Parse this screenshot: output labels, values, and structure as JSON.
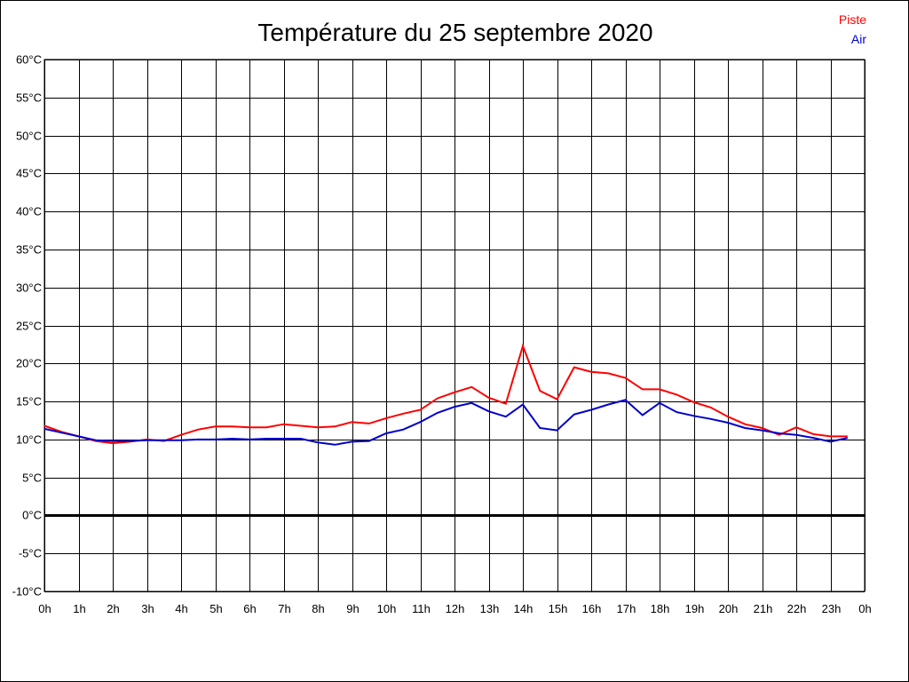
{
  "chart_data": {
    "type": "line",
    "title": "Température du 25 septembre 2020",
    "xlabel": "",
    "ylabel": "",
    "ylim": [
      -10,
      60
    ],
    "y_step": 5,
    "y_tick_labels": [
      "-10°C",
      "-5°C",
      "0°C",
      "5°C",
      "10°C",
      "15°C",
      "20°C",
      "25°C",
      "30°C",
      "35°C",
      "40°C",
      "45°C",
      "50°C",
      "55°C",
      "60°C"
    ],
    "x_tick_labels": [
      "0h",
      "1h",
      "2h",
      "3h",
      "4h",
      "5h",
      "6h",
      "7h",
      "8h",
      "9h",
      "10h",
      "11h",
      "12h",
      "13h",
      "14h",
      "15h",
      "16h",
      "17h",
      "18h",
      "19h",
      "20h",
      "21h",
      "22h",
      "23h",
      "0h"
    ],
    "x_range_hours": [
      0,
      24
    ],
    "grid": true,
    "zero_line": true,
    "legend_position": "top-right",
    "series": [
      {
        "name": "Piste",
        "color": "#ff0000",
        "x": [
          0,
          0.5,
          1,
          1.5,
          2,
          2.5,
          3,
          3.5,
          4,
          4.5,
          5,
          5.5,
          6,
          6.5,
          7,
          7.5,
          8,
          8.5,
          9,
          9.5,
          10,
          10.5,
          11,
          11.5,
          12,
          12.5,
          13,
          13.5,
          14,
          14.5,
          15,
          15.5,
          16,
          16.5,
          17,
          17.5,
          18,
          18.5,
          19,
          19.5,
          20,
          20.5,
          21,
          21.5,
          22,
          22.5,
          23,
          23.5
        ],
        "values": [
          11.8,
          11.0,
          10.4,
          9.8,
          9.5,
          9.7,
          10.0,
          9.8,
          10.6,
          11.3,
          11.7,
          11.7,
          11.6,
          11.6,
          12.0,
          11.8,
          11.6,
          11.7,
          12.3,
          12.1,
          12.8,
          13.4,
          13.9,
          15.4,
          16.2,
          16.9,
          15.5,
          14.7,
          22.3,
          16.4,
          15.3,
          19.5,
          18.9,
          18.7,
          18.1,
          16.6,
          16.6,
          15.9,
          14.9,
          14.2,
          13.0,
          12.0,
          11.5,
          10.6,
          11.6,
          10.7,
          10.4,
          10.4
        ]
      },
      {
        "name": "Air",
        "color": "#0000cc",
        "x": [
          0,
          0.5,
          1,
          1.5,
          2,
          2.5,
          3,
          3.5,
          4,
          4.5,
          5,
          5.5,
          6,
          6.5,
          7,
          7.5,
          8,
          8.5,
          9,
          9.5,
          10,
          10.5,
          11,
          11.5,
          12,
          12.5,
          13,
          13.5,
          14,
          14.5,
          15,
          15.5,
          16,
          16.5,
          17,
          17.5,
          18,
          18.5,
          19,
          19.5,
          20,
          20.5,
          21,
          21.5,
          22,
          22.5,
          23,
          23.5
        ],
        "values": [
          11.4,
          10.9,
          10.4,
          9.9,
          9.8,
          9.8,
          9.9,
          9.9,
          9.9,
          10.0,
          10.0,
          10.1,
          10.0,
          10.1,
          10.1,
          10.1,
          9.6,
          9.3,
          9.7,
          9.8,
          10.8,
          11.3,
          12.3,
          13.5,
          14.3,
          14.8,
          13.7,
          13.0,
          14.6,
          11.5,
          11.2,
          13.3,
          13.9,
          14.6,
          15.2,
          13.2,
          14.8,
          13.6,
          13.1,
          12.7,
          12.2,
          11.5,
          11.2,
          10.8,
          10.6,
          10.2,
          9.7,
          10.2
        ]
      }
    ]
  }
}
